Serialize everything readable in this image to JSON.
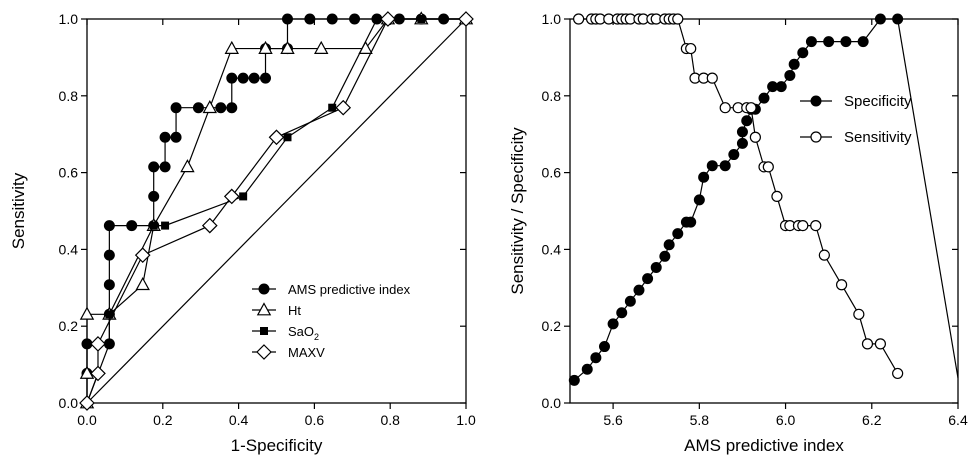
{
  "chart_data": [
    {
      "type": "line",
      "xlabel": "1-Specificity",
      "ylabel": "Sensitivity",
      "xlim": [
        0,
        1
      ],
      "ylim": [
        0,
        1
      ],
      "x_ticks": [
        "0.0",
        "0.2",
        "0.4",
        "0.6",
        "0.8",
        "1.0"
      ],
      "y_ticks": [
        "0.0",
        "0.2",
        "0.4",
        "0.6",
        "0.8",
        "1.0"
      ],
      "reference_line": [
        [
          0,
          0
        ],
        [
          1,
          1
        ]
      ],
      "legend_position": "bottom-right",
      "series": [
        {
          "name": "AMS predictive index",
          "marker": "filled-circle",
          "points": [
            [
              0,
              0
            ],
            [
              0,
              0.077
            ],
            [
              0,
              0.154
            ],
            [
              0.059,
              0.154
            ],
            [
              0.059,
              0.231
            ],
            [
              0.059,
              0.308
            ],
            [
              0.059,
              0.385
            ],
            [
              0.059,
              0.462
            ],
            [
              0.118,
              0.462
            ],
            [
              0.176,
              0.462
            ],
            [
              0.176,
              0.538
            ],
            [
              0.176,
              0.615
            ],
            [
              0.206,
              0.615
            ],
            [
              0.206,
              0.692
            ],
            [
              0.235,
              0.692
            ],
            [
              0.235,
              0.769
            ],
            [
              0.294,
              0.769
            ],
            [
              0.353,
              0.769
            ],
            [
              0.382,
              0.769
            ],
            [
              0.382,
              0.846
            ],
            [
              0.412,
              0.846
            ],
            [
              0.441,
              0.846
            ],
            [
              0.471,
              0.846
            ],
            [
              0.471,
              0.923
            ],
            [
              0.529,
              0.923
            ],
            [
              0.529,
              1
            ],
            [
              0.588,
              1
            ],
            [
              0.647,
              1
            ],
            [
              0.706,
              1
            ],
            [
              0.765,
              1
            ],
            [
              0.824,
              1
            ],
            [
              0.882,
              1
            ],
            [
              0.941,
              1
            ],
            [
              1,
              1
            ]
          ]
        },
        {
          "name": "Ht",
          "marker": "open-triangle",
          "points": [
            [
              0,
              0
            ],
            [
              0,
              0.077
            ],
            [
              0,
              0.231
            ],
            [
              0.059,
              0.231
            ],
            [
              0.147,
              0.308
            ],
            [
              0.176,
              0.462
            ],
            [
              0.265,
              0.615
            ],
            [
              0.324,
              0.769
            ],
            [
              0.382,
              0.923
            ],
            [
              0.471,
              0.923
            ],
            [
              0.529,
              0.923
            ],
            [
              0.618,
              0.923
            ],
            [
              0.735,
              0.923
            ],
            [
              0.794,
              1
            ],
            [
              0.882,
              1
            ],
            [
              1,
              1
            ]
          ]
        },
        {
          "name": "SaO2",
          "marker": "filled-square",
          "points": [
            [
              0,
              0
            ],
            [
              0.059,
              0.154
            ],
            [
              0.059,
              0.231
            ],
            [
              0.176,
              0.462
            ],
            [
              0.206,
              0.462
            ],
            [
              0.412,
              0.538
            ],
            [
              0.529,
              0.692
            ],
            [
              0.647,
              0.769
            ],
            [
              0.765,
              1
            ],
            [
              0.882,
              1
            ],
            [
              1,
              1
            ]
          ]
        },
        {
          "name": "MAXV",
          "marker": "open-diamond",
          "points": [
            [
              0,
              0
            ],
            [
              0.029,
              0.077
            ],
            [
              0.029,
              0.154
            ],
            [
              0.147,
              0.385
            ],
            [
              0.324,
              0.462
            ],
            [
              0.382,
              0.538
            ],
            [
              0.5,
              0.692
            ],
            [
              0.676,
              0.769
            ],
            [
              0.794,
              1
            ],
            [
              1,
              1
            ]
          ]
        }
      ]
    },
    {
      "type": "line",
      "xlabel": "AMS predictive index",
      "ylabel": "Sensitivity / Specificity",
      "xlim": [
        5.5,
        6.4
      ],
      "ylim": [
        0,
        1
      ],
      "x_ticks": [
        "5.6",
        "5.8",
        "6.0",
        "6.2",
        "6.4"
      ],
      "y_ticks": [
        "0.0",
        "0.2",
        "0.4",
        "0.6",
        "0.8",
        "1.0"
      ],
      "legend_position": "top-right",
      "series": [
        {
          "name": "Specificity",
          "marker": "filled-circle",
          "x": [
            5.51,
            5.54,
            5.56,
            5.58,
            5.6,
            5.62,
            5.64,
            5.66,
            5.68,
            5.7,
            5.72,
            5.73,
            5.75,
            5.77,
            5.78,
            5.8,
            5.81,
            5.83,
            5.86,
            5.88,
            5.9,
            5.9,
            5.91,
            5.92,
            5.92,
            5.93,
            5.95,
            5.97,
            5.99,
            6.01,
            6.02,
            6.04,
            6.06,
            6.1,
            6.14,
            6.18,
            6.22,
            6.26,
            6.4
          ],
          "y": [
            0.059,
            0.088,
            0.118,
            0.147,
            0.206,
            0.235,
            0.265,
            0.294,
            0.324,
            0.353,
            0.382,
            0.412,
            0.441,
            0.471,
            0.471,
            0.529,
            0.588,
            0.618,
            0.618,
            0.647,
            0.676,
            0.706,
            0.735,
            0.765,
            0.765,
            0.765,
            0.794,
            0.824,
            0.824,
            0.853,
            0.882,
            0.912,
            0.941,
            0.941,
            0.941,
            0.941,
            1,
            1,
            0.065
          ]
        },
        {
          "name": "Sensitivity",
          "marker": "open-circle",
          "x": [
            5.52,
            5.55,
            5.56,
            5.57,
            5.59,
            5.61,
            5.62,
            5.63,
            5.64,
            5.66,
            5.67,
            5.69,
            5.7,
            5.72,
            5.73,
            5.74,
            5.75,
            5.77,
            5.78,
            5.79,
            5.81,
            5.83,
            5.86,
            5.89,
            5.91,
            5.92,
            5.93,
            5.95,
            5.96,
            5.98,
            6.0,
            6.01,
            6.03,
            6.04,
            6.07,
            6.09,
            6.13,
            6.17,
            6.19,
            6.22,
            6.26
          ],
          "y": [
            1,
            1,
            1,
            1,
            1,
            1,
            1,
            1,
            1,
            1,
            1,
            1,
            1,
            1,
            1,
            1,
            1,
            0.923,
            0.923,
            0.846,
            0.846,
            0.846,
            0.769,
            0.769,
            0.769,
            0.769,
            0.692,
            0.615,
            0.615,
            0.538,
            0.462,
            0.462,
            0.462,
            0.462,
            0.462,
            0.385,
            0.308,
            0.231,
            0.154,
            0.154,
            0.077
          ]
        }
      ]
    }
  ]
}
